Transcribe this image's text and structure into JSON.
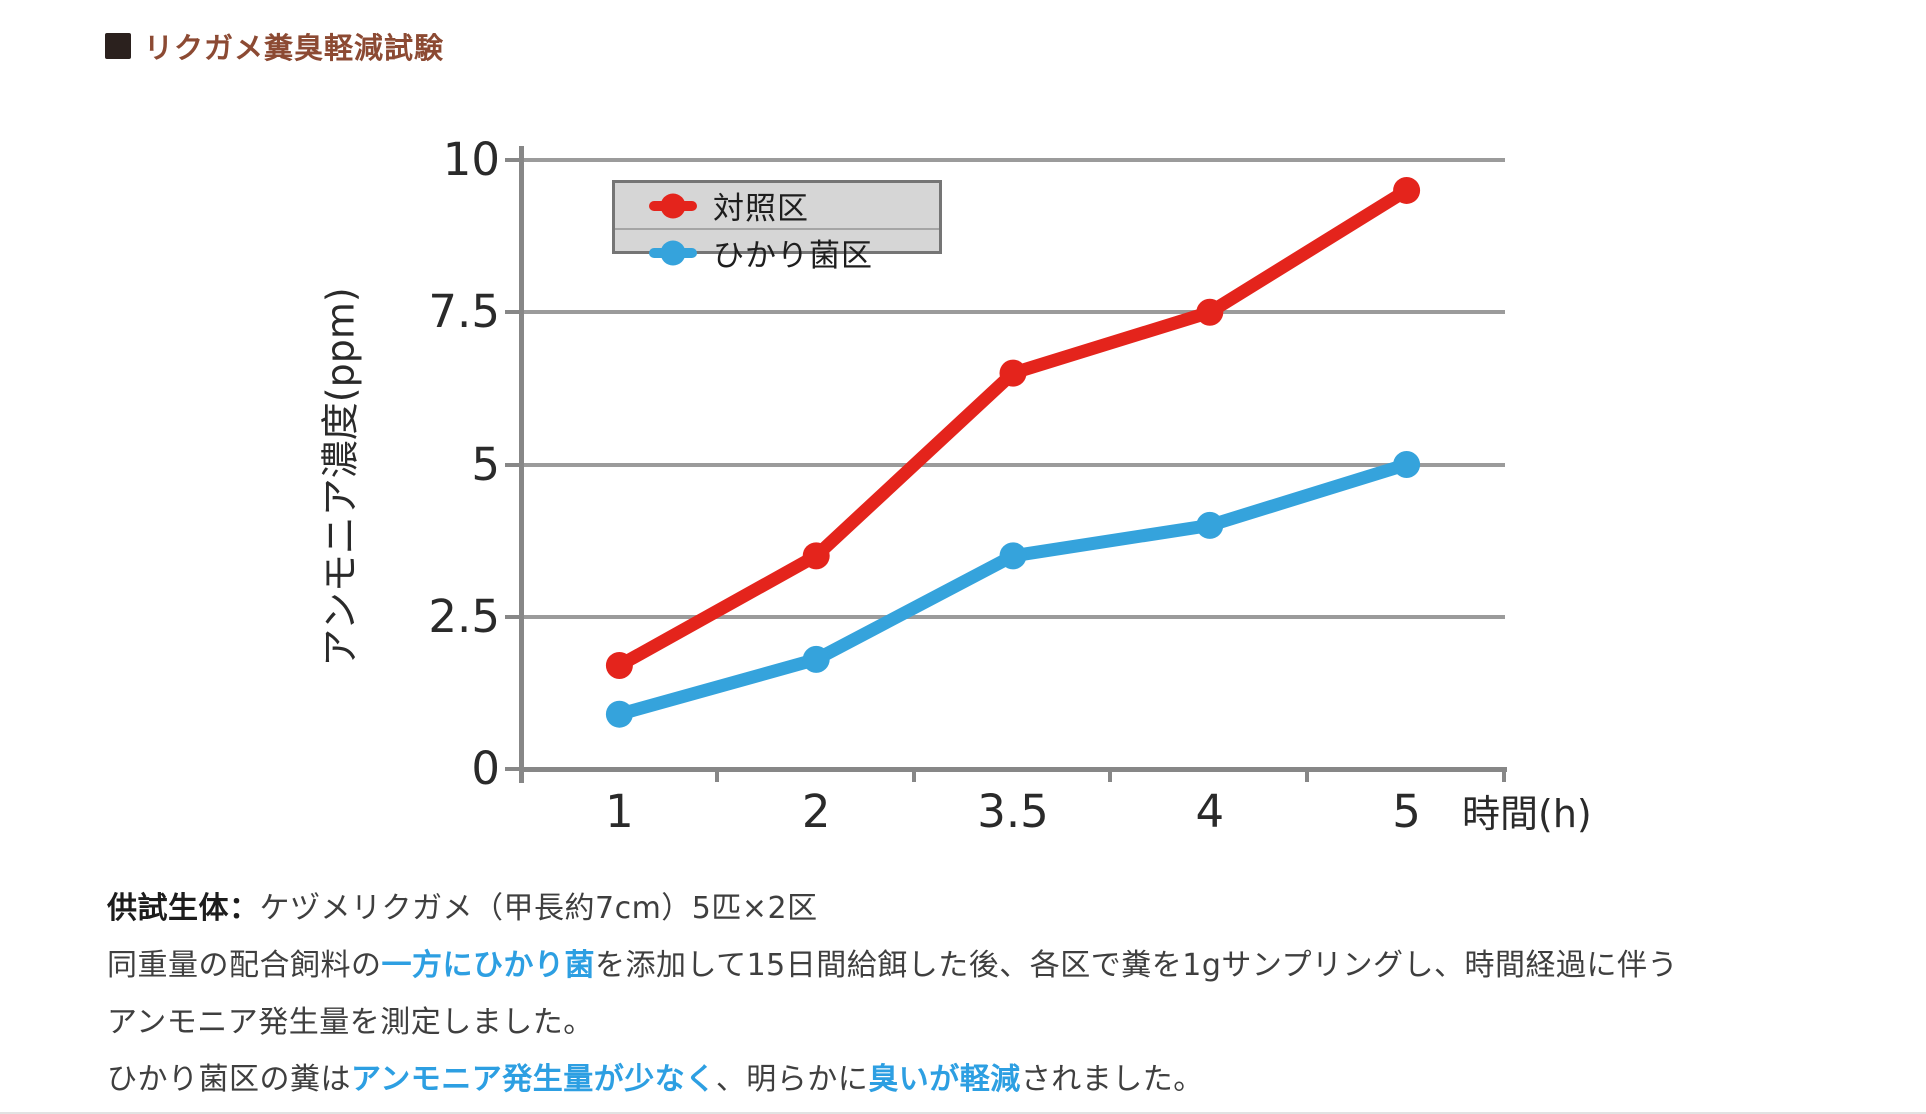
{
  "page": {
    "bg": "#ffffff",
    "divider_color": "#e2e2e2"
  },
  "header": {
    "title": "リクガメ糞臭軽減試験",
    "title_color": "#8c4a33",
    "bullet_color": "#2b211e"
  },
  "chart_data": {
    "type": "line",
    "title": "",
    "xlabel": "時間(h)",
    "ylabel": "アンモニア濃度(ppm)",
    "x_categories": [
      "1",
      "2",
      "3.5",
      "4",
      "5"
    ],
    "y_ticks": [
      10,
      7.5,
      5,
      2.5,
      0
    ],
    "ylim": [
      0,
      10
    ],
    "grid": true,
    "legend": {
      "position": "top-left-inside",
      "bg": "#d6d6d6",
      "border": "#757575"
    },
    "series": [
      {
        "name": "対照区",
        "color": "#e4241c",
        "values": [
          1.7,
          3.5,
          6.5,
          7.5,
          9.5
        ]
      },
      {
        "name": "ひかり菌区",
        "color": "#35a3dc",
        "values": [
          0.9,
          1.8,
          3.5,
          4.0,
          5.0
        ]
      }
    ],
    "axis_color": "#878787",
    "grid_color": "#9b9b9b",
    "tick_label_color": "#2a2a2a"
  },
  "description": {
    "text_color": "#3f3f3f",
    "accent_color": "#2d9fe2",
    "lines": [
      {
        "segments": [
          {
            "text": "供試生体：",
            "style": "bold"
          },
          {
            "text": "ケヅメリクガメ（甲長約7cm）5匹×2区",
            "style": "normal"
          }
        ]
      },
      {
        "segments": [
          {
            "text": "同重量の配合飼料の",
            "style": "normal"
          },
          {
            "text": "一方にひかり菌",
            "style": "blue"
          },
          {
            "text": "を添加して15日間給餌した後、各区で糞を1gサンプリングし、時間経過に伴う",
            "style": "normal"
          }
        ]
      },
      {
        "segments": [
          {
            "text": "アンモニア発生量を測定しました。",
            "style": "normal"
          }
        ]
      },
      {
        "segments": [
          {
            "text": "ひかり菌区の糞は",
            "style": "normal"
          },
          {
            "text": "アンモニア発生量が少なく",
            "style": "blue"
          },
          {
            "text": "、明らかに",
            "style": "normal"
          },
          {
            "text": "臭いが軽減",
            "style": "blue"
          },
          {
            "text": "されました。",
            "style": "normal"
          }
        ]
      }
    ]
  }
}
